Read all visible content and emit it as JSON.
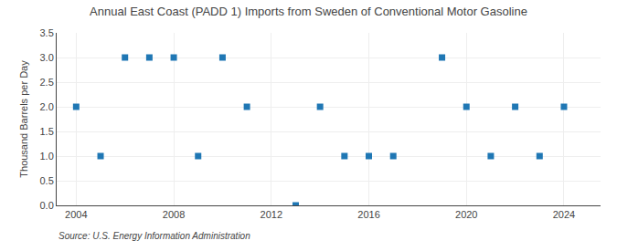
{
  "chart_data": {
    "type": "scatter",
    "title": "Annual East Coast (PADD 1) Imports from Sweden of Conventional Motor Gasoline",
    "ylabel": "Thousand Barrels per Day",
    "annotations": [
      "Source: U.S. Energy Information Administration"
    ],
    "marker": "square",
    "x": [
      2004,
      2005,
      2006,
      2007,
      2008,
      2009,
      2010,
      2011,
      2013,
      2014,
      2015,
      2016,
      2017,
      2019,
      2020,
      2021,
      2022,
      2023,
      2024
    ],
    "values": [
      2.0,
      1.0,
      3.0,
      3.0,
      3.0,
      1.0,
      3.0,
      2.0,
      0.0,
      2.0,
      1.0,
      1.0,
      1.0,
      3.0,
      2.0,
      1.0,
      2.0,
      1.0,
      2.0
    ],
    "xlim": [
      2003.2,
      2025.5
    ],
    "xticks": [
      2004,
      2008,
      2012,
      2016,
      2020,
      2024
    ],
    "ylim": [
      0.0,
      3.5
    ],
    "yticks": [
      {
        "value": 0.0,
        "label": "0.0"
      },
      0.5,
      {
        "value": 1.0,
        "label": "1.0"
      },
      1.5,
      {
        "value": 2.0,
        "label": "2.0"
      },
      2.5,
      {
        "value": 3.0,
        "label": "3.0"
      },
      3.5
    ],
    "grid": true
  }
}
